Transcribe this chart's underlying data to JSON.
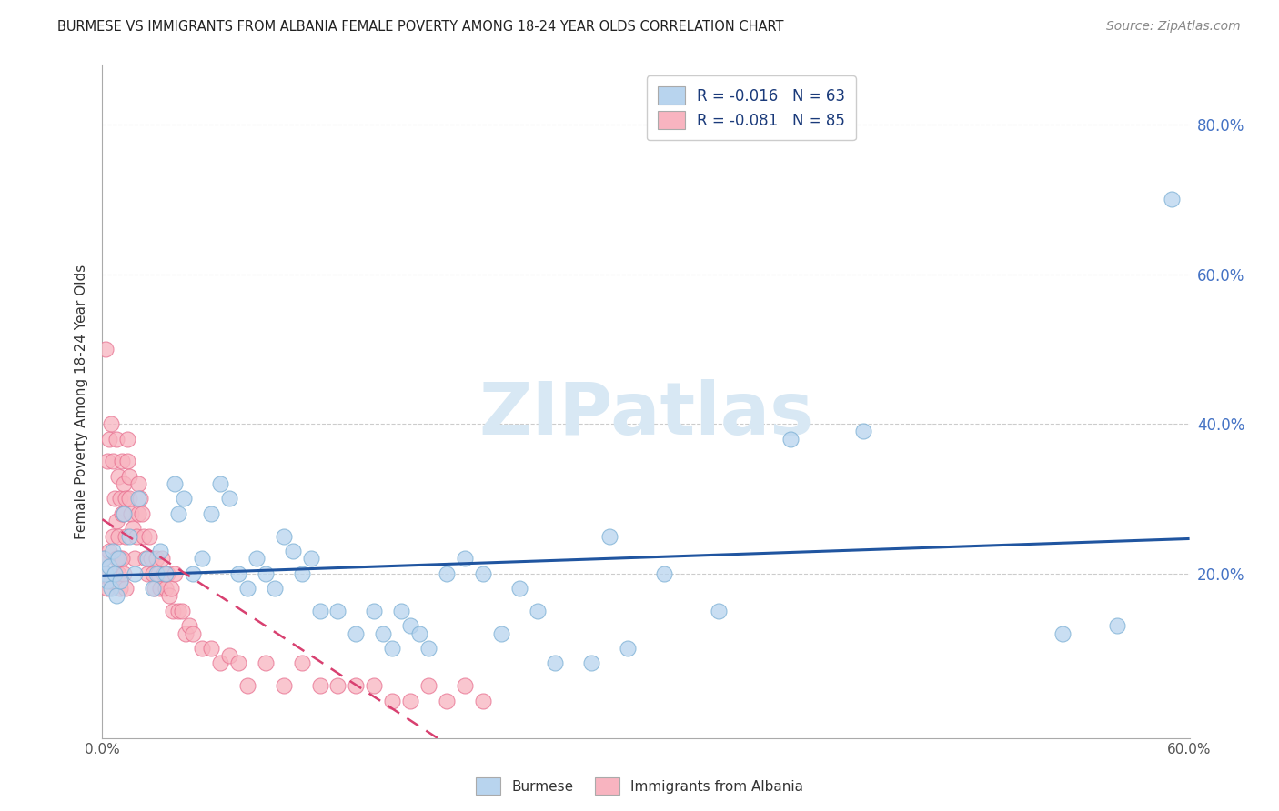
{
  "title": "BURMESE VS IMMIGRANTS FROM ALBANIA FEMALE POVERTY AMONG 18-24 YEAR OLDS CORRELATION CHART",
  "source": "Source: ZipAtlas.com",
  "ylabel": "Female Poverty Among 18-24 Year Olds",
  "y_tick_labels": [
    "20.0%",
    "40.0%",
    "60.0%",
    "80.0%"
  ],
  "y_tick_values": [
    0.2,
    0.4,
    0.6,
    0.8
  ],
  "xlim": [
    0.0,
    0.6
  ],
  "ylim": [
    -0.02,
    0.88
  ],
  "burmese_color": "#b8d4ee",
  "burmese_edge_color": "#7aafd4",
  "albania_color": "#f8b4c0",
  "albania_edge_color": "#e87090",
  "burmese_line_color": "#2055a0",
  "albania_line_color": "#d84070",
  "watermark_color": "#d8e8f4",
  "burmese_R": -0.016,
  "burmese_N": 63,
  "albania_R": -0.081,
  "albania_N": 85,
  "burmese_x": [
    0.001,
    0.002,
    0.003,
    0.004,
    0.005,
    0.006,
    0.007,
    0.008,
    0.009,
    0.01,
    0.012,
    0.015,
    0.018,
    0.02,
    0.025,
    0.028,
    0.03,
    0.032,
    0.035,
    0.04,
    0.042,
    0.045,
    0.05,
    0.055,
    0.06,
    0.065,
    0.07,
    0.075,
    0.08,
    0.085,
    0.09,
    0.095,
    0.1,
    0.105,
    0.11,
    0.115,
    0.12,
    0.13,
    0.14,
    0.15,
    0.155,
    0.16,
    0.165,
    0.17,
    0.175,
    0.18,
    0.19,
    0.2,
    0.21,
    0.22,
    0.23,
    0.24,
    0.25,
    0.27,
    0.28,
    0.29,
    0.31,
    0.34,
    0.38,
    0.42,
    0.53,
    0.56,
    0.59
  ],
  "burmese_y": [
    0.22,
    0.2,
    0.19,
    0.21,
    0.18,
    0.23,
    0.2,
    0.17,
    0.22,
    0.19,
    0.28,
    0.25,
    0.2,
    0.3,
    0.22,
    0.18,
    0.2,
    0.23,
    0.2,
    0.32,
    0.28,
    0.3,
    0.2,
    0.22,
    0.28,
    0.32,
    0.3,
    0.2,
    0.18,
    0.22,
    0.2,
    0.18,
    0.25,
    0.23,
    0.2,
    0.22,
    0.15,
    0.15,
    0.12,
    0.15,
    0.12,
    0.1,
    0.15,
    0.13,
    0.12,
    0.1,
    0.2,
    0.22,
    0.2,
    0.12,
    0.18,
    0.15,
    0.08,
    0.08,
    0.25,
    0.1,
    0.2,
    0.15,
    0.38,
    0.39,
    0.12,
    0.13,
    0.7
  ],
  "albania_x": [
    0.001,
    0.002,
    0.002,
    0.003,
    0.003,
    0.004,
    0.004,
    0.005,
    0.005,
    0.006,
    0.006,
    0.007,
    0.007,
    0.008,
    0.008,
    0.009,
    0.009,
    0.01,
    0.01,
    0.011,
    0.011,
    0.012,
    0.012,
    0.013,
    0.013,
    0.014,
    0.014,
    0.015,
    0.015,
    0.016,
    0.017,
    0.018,
    0.019,
    0.02,
    0.02,
    0.021,
    0.022,
    0.023,
    0.024,
    0.025,
    0.026,
    0.027,
    0.028,
    0.029,
    0.03,
    0.031,
    0.032,
    0.033,
    0.034,
    0.035,
    0.036,
    0.037,
    0.038,
    0.039,
    0.04,
    0.042,
    0.044,
    0.046,
    0.048,
    0.05,
    0.055,
    0.06,
    0.065,
    0.07,
    0.075,
    0.08,
    0.09,
    0.1,
    0.11,
    0.12,
    0.13,
    0.14,
    0.15,
    0.16,
    0.17,
    0.18,
    0.19,
    0.2,
    0.21,
    0.008,
    0.009,
    0.01,
    0.011,
    0.012,
    0.013
  ],
  "albania_y": [
    0.22,
    0.2,
    0.5,
    0.18,
    0.35,
    0.23,
    0.38,
    0.19,
    0.4,
    0.25,
    0.35,
    0.2,
    0.3,
    0.27,
    0.38,
    0.25,
    0.33,
    0.22,
    0.3,
    0.28,
    0.35,
    0.32,
    0.28,
    0.3,
    0.25,
    0.38,
    0.35,
    0.33,
    0.3,
    0.28,
    0.26,
    0.22,
    0.25,
    0.28,
    0.32,
    0.3,
    0.28,
    0.25,
    0.22,
    0.2,
    0.25,
    0.22,
    0.2,
    0.18,
    0.22,
    0.2,
    0.18,
    0.22,
    0.2,
    0.18,
    0.2,
    0.17,
    0.18,
    0.15,
    0.2,
    0.15,
    0.15,
    0.12,
    0.13,
    0.12,
    0.1,
    0.1,
    0.08,
    0.09,
    0.08,
    0.05,
    0.08,
    0.05,
    0.08,
    0.05,
    0.05,
    0.05,
    0.05,
    0.03,
    0.03,
    0.05,
    0.03,
    0.05,
    0.03,
    0.22,
    0.2,
    0.18,
    0.22,
    0.2,
    0.18
  ]
}
